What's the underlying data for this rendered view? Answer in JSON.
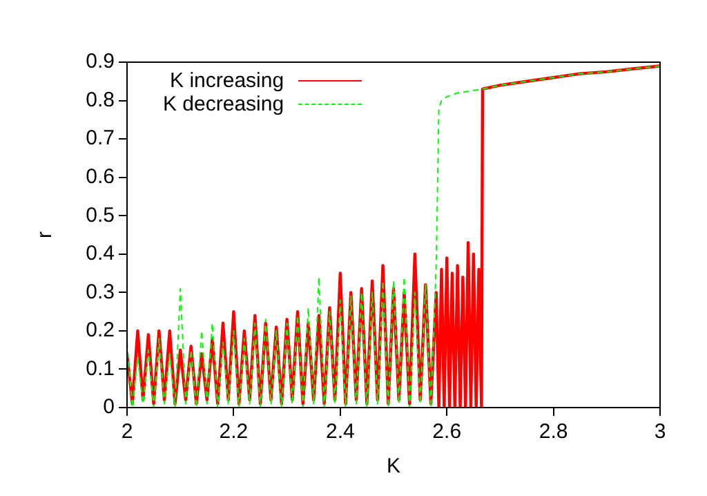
{
  "chart_data": {
    "type": "line",
    "xlabel": "K",
    "ylabel": "r",
    "xlim": [
      2,
      3
    ],
    "ylim": [
      0,
      0.9
    ],
    "xticks": [
      2,
      2.2,
      2.4,
      2.6,
      2.8,
      3
    ],
    "yticks": [
      0,
      0.1,
      0.2,
      0.3,
      0.4,
      0.5,
      0.6,
      0.7,
      0.8,
      0.9
    ],
    "grid": false,
    "legend": "top left",
    "marker": "none",
    "series": [
      {
        "name": "K increasing",
        "color": "#ff0000",
        "line_style": "solid",
        "x": [
          2.0,
          2.01,
          2.02,
          2.03,
          2.04,
          2.05,
          2.06,
          2.07,
          2.08,
          2.09,
          2.1,
          2.11,
          2.12,
          2.13,
          2.14,
          2.15,
          2.16,
          2.17,
          2.18,
          2.19,
          2.2,
          2.21,
          2.22,
          2.23,
          2.24,
          2.25,
          2.26,
          2.27,
          2.28,
          2.29,
          2.3,
          2.31,
          2.32,
          2.33,
          2.34,
          2.35,
          2.36,
          2.37,
          2.38,
          2.39,
          2.4,
          2.41,
          2.42,
          2.43,
          2.44,
          2.45,
          2.46,
          2.47,
          2.48,
          2.49,
          2.5,
          2.51,
          2.52,
          2.53,
          2.54,
          2.55,
          2.56,
          2.57,
          2.58,
          2.585,
          2.59,
          2.595,
          2.6,
          2.605,
          2.61,
          2.615,
          2.62,
          2.625,
          2.63,
          2.635,
          2.64,
          2.645,
          2.65,
          2.655,
          2.66,
          2.665,
          2.667,
          2.7,
          2.75,
          2.8,
          2.85,
          2.9,
          2.95,
          3.0
        ],
        "values": [
          0.14,
          0.01,
          0.2,
          0.02,
          0.19,
          0.01,
          0.2,
          0.02,
          0.2,
          0.01,
          0.15,
          0.02,
          0.16,
          0.01,
          0.14,
          0.02,
          0.18,
          0.01,
          0.22,
          0.02,
          0.25,
          0.01,
          0.2,
          0.02,
          0.24,
          0.01,
          0.22,
          0.02,
          0.21,
          0.01,
          0.23,
          0.02,
          0.25,
          0.01,
          0.22,
          0.02,
          0.24,
          0.01,
          0.26,
          0.02,
          0.35,
          0.01,
          0.3,
          0.02,
          0.31,
          0.01,
          0.33,
          0.02,
          0.37,
          0.01,
          0.31,
          0.02,
          0.3,
          0.01,
          0.4,
          0.02,
          0.32,
          0.01,
          0.3,
          0.0,
          0.36,
          0.0,
          0.39,
          0.0,
          0.35,
          0.0,
          0.37,
          0.0,
          0.34,
          0.0,
          0.43,
          0.0,
          0.4,
          0.0,
          0.36,
          0.0,
          0.83,
          0.84,
          0.85,
          0.86,
          0.87,
          0.875,
          0.883,
          0.89
        ]
      },
      {
        "name": "K decreasing",
        "color": "#00ff00",
        "line_style": "dashed",
        "x": [
          2.0,
          2.01,
          2.02,
          2.03,
          2.04,
          2.05,
          2.06,
          2.07,
          2.08,
          2.09,
          2.1,
          2.11,
          2.12,
          2.13,
          2.14,
          2.15,
          2.16,
          2.17,
          2.18,
          2.19,
          2.2,
          2.21,
          2.22,
          2.23,
          2.24,
          2.25,
          2.26,
          2.27,
          2.28,
          2.29,
          2.3,
          2.31,
          2.32,
          2.33,
          2.34,
          2.35,
          2.36,
          2.37,
          2.38,
          2.39,
          2.4,
          2.41,
          2.42,
          2.43,
          2.44,
          2.45,
          2.46,
          2.47,
          2.48,
          2.49,
          2.5,
          2.51,
          2.52,
          2.53,
          2.54,
          2.55,
          2.56,
          2.57,
          2.58,
          2.585,
          2.59,
          2.6,
          2.62,
          2.667,
          2.7,
          2.75,
          2.8,
          2.85,
          2.9,
          2.95,
          3.0
        ],
        "values": [
          0.17,
          0.0,
          0.13,
          0.01,
          0.15,
          0.0,
          0.18,
          0.01,
          0.14,
          0.0,
          0.31,
          0.01,
          0.15,
          0.0,
          0.2,
          0.01,
          0.22,
          0.0,
          0.17,
          0.01,
          0.2,
          0.0,
          0.18,
          0.01,
          0.22,
          0.0,
          0.23,
          0.01,
          0.2,
          0.0,
          0.22,
          0.01,
          0.24,
          0.0,
          0.26,
          0.01,
          0.34,
          0.0,
          0.25,
          0.01,
          0.28,
          0.0,
          0.29,
          0.01,
          0.3,
          0.0,
          0.3,
          0.01,
          0.33,
          0.0,
          0.33,
          0.01,
          0.34,
          0.0,
          0.3,
          0.01,
          0.32,
          0.0,
          0.37,
          0.78,
          0.8,
          0.81,
          0.82,
          0.83,
          0.84,
          0.85,
          0.86,
          0.87,
          0.875,
          0.883,
          0.89
        ]
      }
    ]
  }
}
